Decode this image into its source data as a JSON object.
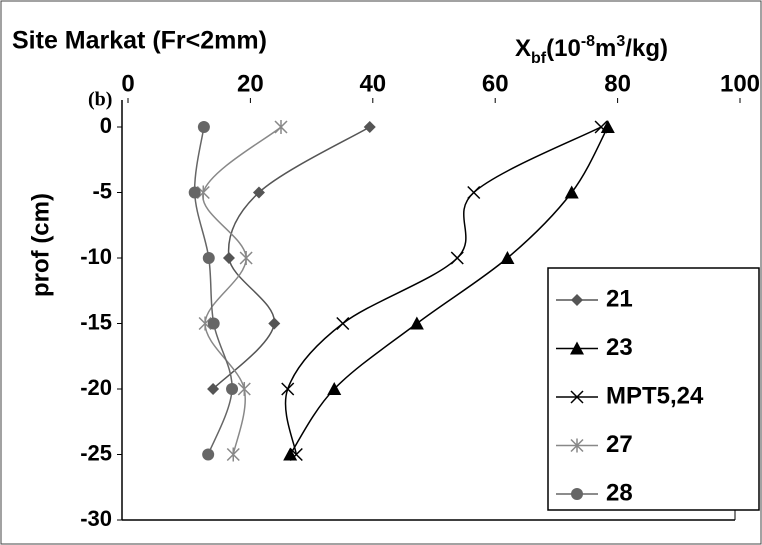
{
  "chart_data": {
    "type": "line",
    "title": "Site Markat (Fr<2mm)",
    "panel_label": "(b)",
    "xlabel_parts": [
      {
        "text": "X",
        "shift": "none"
      },
      {
        "text": "bf",
        "shift": "sub"
      },
      {
        "text": "(10",
        "shift": "none"
      },
      {
        "text": "-8",
        "shift": "super"
      },
      {
        "text": "m",
        "shift": "none"
      },
      {
        "text": "3",
        "shift": "super"
      },
      {
        "text": "/kg)",
        "shift": "none"
      }
    ],
    "ylabel": "prof (cm)",
    "y": [
      0,
      -5,
      -10,
      -15,
      -20,
      -25
    ],
    "xlim": [
      0,
      100
    ],
    "xticks": [
      0,
      20,
      40,
      60,
      80,
      100
    ],
    "ylim": [
      -30,
      0
    ],
    "yticks": [
      0,
      -5,
      -10,
      -15,
      -20,
      -25,
      -30
    ],
    "legend": "lower right",
    "series": [
      {
        "name": "21",
        "color": "#555555",
        "marker": "diamond",
        "values": [
          39.5,
          21.4,
          16.5,
          23.9,
          13.9,
          null
        ]
      },
      {
        "name": "23",
        "color": "#000000",
        "marker": "triangle",
        "values": [
          78.4,
          72.5,
          62,
          47.2,
          33.7,
          26.5
        ]
      },
      {
        "name": "MPT5,24",
        "color": "#000000",
        "marker": "x",
        "values": [
          77.3,
          56.5,
          53.8,
          35.1,
          26.1,
          27.5
        ]
      },
      {
        "name": "27",
        "color": "#888888",
        "marker": "star",
        "values": [
          25,
          12.3,
          19.3,
          12.6,
          19,
          17.2
        ]
      },
      {
        "name": "28",
        "color": "#666666",
        "marker": "circle",
        "values": [
          12.4,
          10.9,
          13.2,
          14,
          17,
          13.1
        ]
      }
    ]
  }
}
